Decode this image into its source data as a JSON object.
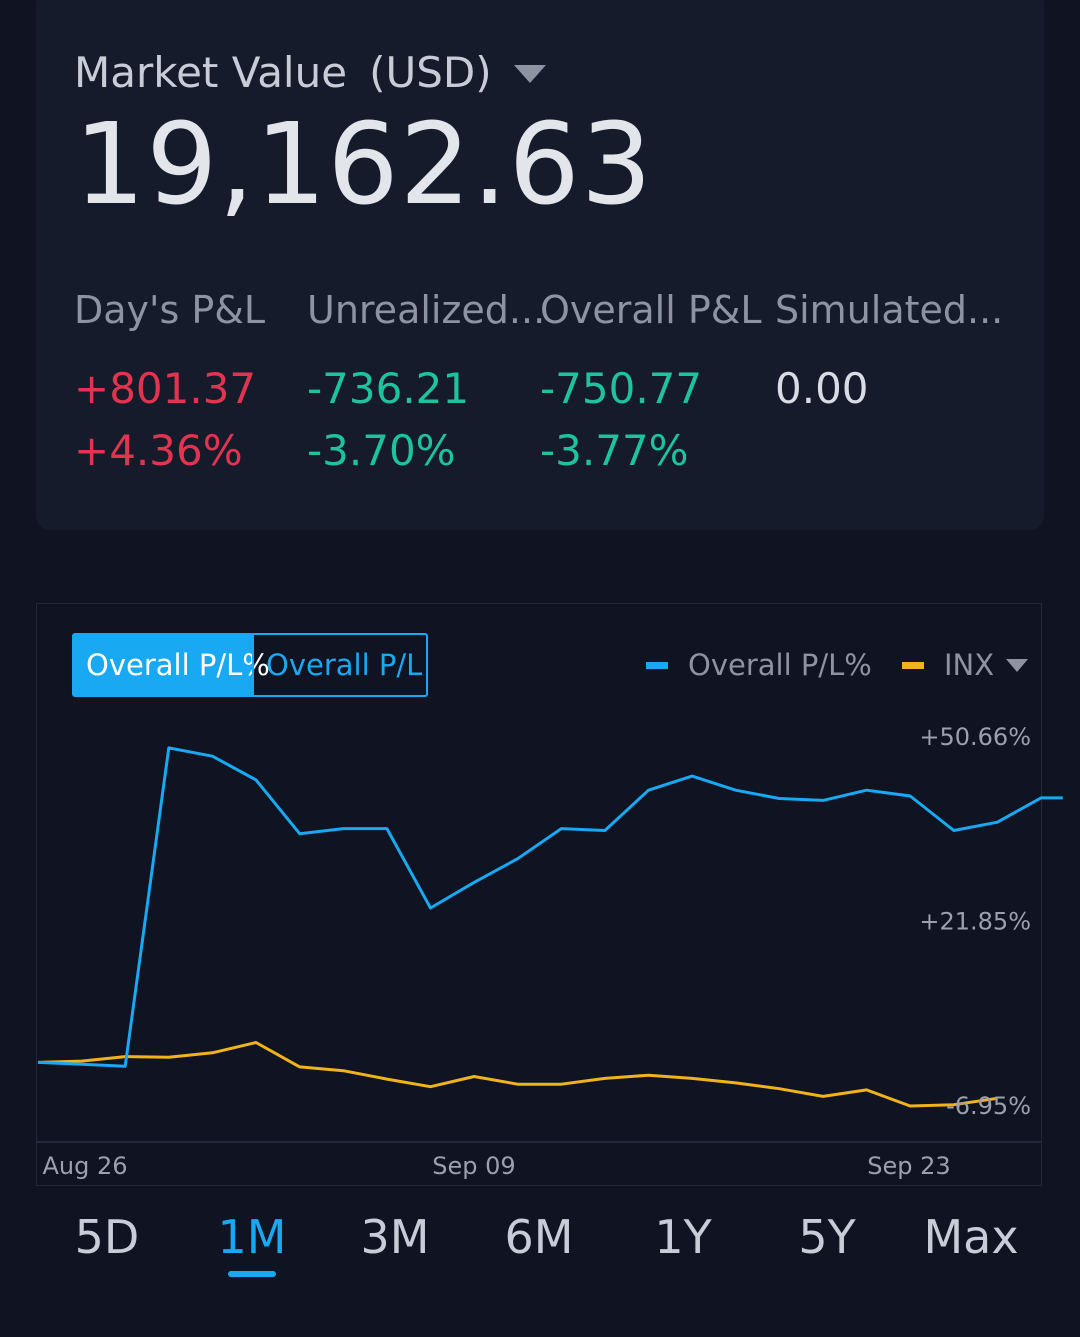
{
  "colors": {
    "background": "#0f1322",
    "card": "#161b2c",
    "positive": "#e2334f",
    "negative": "#1fc39b",
    "neutral": "#d8dce4",
    "accent": "#18a9f2",
    "inx": "#f0b31c"
  },
  "header": {
    "title": "Market Value",
    "currency": "(USD)",
    "dropdown_icon": "caret-down-icon",
    "value": "19,162.63"
  },
  "pl": [
    {
      "label": "Day's P&L",
      "amount": "+801.37",
      "percent": "+4.36%",
      "tone": "positive"
    },
    {
      "label": "Unrealized...",
      "amount": "-736.21",
      "percent": "-3.70%",
      "tone": "negative"
    },
    {
      "label": "Overall P&L",
      "amount": "-750.77",
      "percent": "-3.77%",
      "tone": "negative"
    },
    {
      "label": "Simulated...",
      "amount": "0.00",
      "percent": "",
      "tone": "neutral"
    }
  ],
  "toggle": {
    "options": [
      "Overall P/L%",
      "Overall P/L"
    ],
    "selected": 0
  },
  "legend": {
    "items": [
      {
        "name": "Overall P/L%",
        "color": "#18a9f2"
      },
      {
        "name": "INX",
        "color": "#f0b31c"
      }
    ],
    "dropdown_icon": "caret-down-icon"
  },
  "chart_data": {
    "type": "line",
    "x_ticks": [
      "Aug 26",
      "Sep 09",
      "Sep 23"
    ],
    "y_ticks": [
      "+50.66%",
      "+21.85%",
      "-6.95%"
    ],
    "y_tick_values": [
      50.66,
      21.85,
      -6.95
    ],
    "ylim": [
      -11,
      52
    ],
    "series": [
      {
        "name": "Overall P/L%",
        "color": "#18a9f2",
        "values": [
          -0.3,
          -0.6,
          -0.9,
          48.8,
          47.5,
          43.8,
          35.4,
          36.2,
          36.2,
          23.8,
          27.8,
          31.5,
          36.2,
          35.9,
          42.2,
          44.4,
          42.2,
          40.9,
          40.6,
          42.2,
          41.3,
          35.9,
          37.2,
          41.0,
          41.0
        ],
        "x_positions": [
          0,
          1,
          2,
          3,
          4,
          5,
          6,
          7,
          8,
          9,
          10,
          11,
          12,
          13,
          14,
          15,
          16,
          17,
          18,
          19,
          20,
          21,
          22,
          23,
          23.5
        ]
      },
      {
        "name": "INX",
        "color": "#f0b31c",
        "values": [
          -0.3,
          -0.1,
          0.6,
          0.5,
          1.2,
          2.8,
          -1.0,
          -1.6,
          -2.9,
          -4.1,
          -2.5,
          -3.7,
          -3.7,
          -2.8,
          -2.3,
          -2.8,
          -3.5,
          -4.4,
          -5.6,
          -4.6,
          -7.1,
          -6.9,
          -5.9
        ],
        "x_positions": [
          0,
          1,
          2,
          3,
          4,
          5,
          6,
          7,
          8,
          9,
          10,
          11,
          12,
          13,
          14,
          15,
          16,
          17,
          18,
          19,
          20,
          21,
          22
        ]
      }
    ]
  },
  "ranges": {
    "items": [
      "5D",
      "1M",
      "3M",
      "6M",
      "1Y",
      "5Y",
      "Max"
    ],
    "selected": 1
  }
}
